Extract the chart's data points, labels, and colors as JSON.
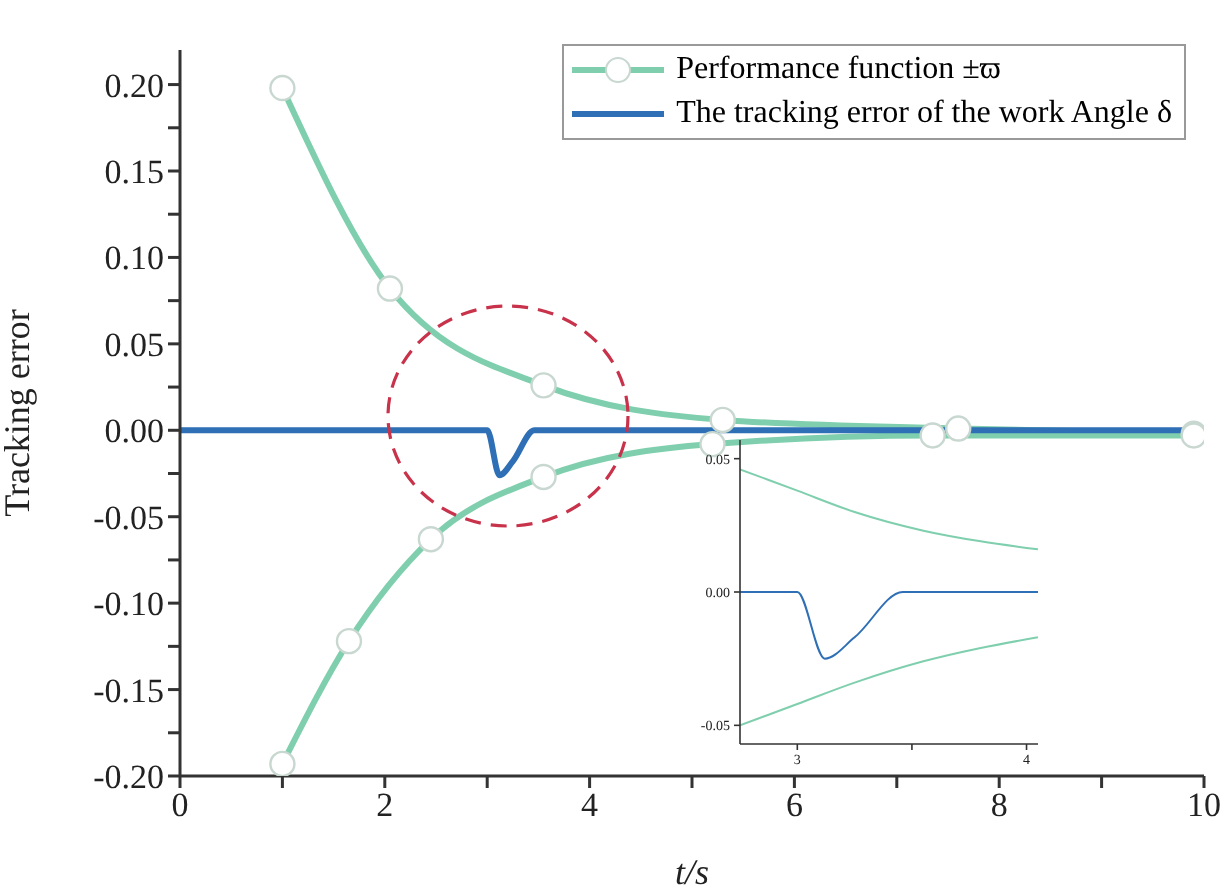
{
  "chart_data": [
    {
      "type": "line",
      "xlabel": "t/s",
      "ylabel": "Tracking error",
      "xlim": [
        0,
        10
      ],
      "ylim": [
        -0.2,
        0.22
      ],
      "xticks": [
        0,
        {
          "value": 1,
          "label": null
        },
        2,
        {
          "value": 3,
          "label": null
        },
        4,
        {
          "value": 5,
          "label": null
        },
        6,
        {
          "value": 7,
          "label": null
        },
        8,
        {
          "value": 9,
          "label": null
        },
        10
      ],
      "yticks": [
        {
          "value": -0.2,
          "label": "-0.20"
        },
        {
          "value": -0.175,
          "label": null
        },
        {
          "value": -0.15,
          "label": "-0.15"
        },
        {
          "value": -0.125,
          "label": null
        },
        {
          "value": -0.1,
          "label": "-0.10"
        },
        {
          "value": -0.075,
          "label": null
        },
        {
          "value": -0.05,
          "label": "-0.05"
        },
        {
          "value": -0.025,
          "label": null
        },
        {
          "value": 0,
          "label": "0.00"
        },
        {
          "value": 0.025,
          "label": null
        },
        {
          "value": 0.05,
          "label": "0.05"
        },
        {
          "value": 0.075,
          "label": null
        },
        {
          "value": 0.1,
          "label": "0.10"
        },
        {
          "value": 0.125,
          "label": null
        },
        {
          "value": 0.15,
          "label": "0.15"
        },
        {
          "value": 0.175,
          "label": null
        },
        {
          "value": 0.2,
          "label": "0.20"
        }
      ],
      "grid": false,
      "legend": "top right",
      "marker": "circle",
      "line_style": "solid",
      "series": [
        {
          "name": "Performance function ±ϖ",
          "color": "#7fcfae",
          "x": [
            1,
            2.05,
            3.55,
            5.3,
            7.6,
            9.9
          ],
          "values": [
            0.198,
            0.082,
            0.026,
            0.006,
            0.001,
            -0.002
          ]
        },
        {
          "color": "#7fcfae",
          "x": [
            1,
            1.65,
            2.45,
            3.55,
            5.2,
            7.35,
            9.9
          ],
          "values": [
            -0.193,
            -0.122,
            -0.063,
            -0.027,
            -0.008,
            -0.003,
            -0.003
          ]
        },
        {
          "name": "The tracking error of the work Angle δ",
          "color": "#2e6fb5",
          "marker": "none",
          "x": [
            0,
            3.0,
            3.12,
            3.25,
            3.46,
            10
          ],
          "values": [
            0,
            0,
            -0.026,
            -0.018,
            0,
            0
          ]
        }
      ]
    },
    {
      "type": "line",
      "xlim": [
        2.75,
        4.05
      ],
      "ylim": [
        -0.057,
        0.057
      ],
      "xticks": [
        3,
        {
          "value": 3.5,
          "label": null
        },
        4
      ],
      "yticks": [
        {
          "value": -0.05,
          "label": "-0.05"
        },
        {
          "value": 0,
          "label": "0.00"
        },
        {
          "value": 0.05,
          "label": "0.05"
        }
      ],
      "grid": false,
      "marker": "none",
      "line_style": "solid",
      "series": [
        {
          "color": "#7fcfae",
          "x": [
            2.75,
            3.0,
            3.25,
            3.55,
            3.8,
            4.05
          ],
          "values": [
            0.046,
            0.038,
            0.03,
            0.023,
            0.019,
            0.016
          ]
        },
        {
          "color": "#7fcfae",
          "x": [
            2.75,
            3.0,
            3.25,
            3.55,
            3.8,
            4.05
          ],
          "values": [
            -0.05,
            -0.042,
            -0.034,
            -0.026,
            -0.021,
            -0.017
          ]
        },
        {
          "color": "#2e6fb5",
          "x": [
            2.75,
            3.0,
            3.12,
            3.25,
            3.46,
            4.05
          ],
          "values": [
            0,
            0,
            -0.025,
            -0.017,
            0,
            0
          ]
        }
      ]
    }
  ]
}
